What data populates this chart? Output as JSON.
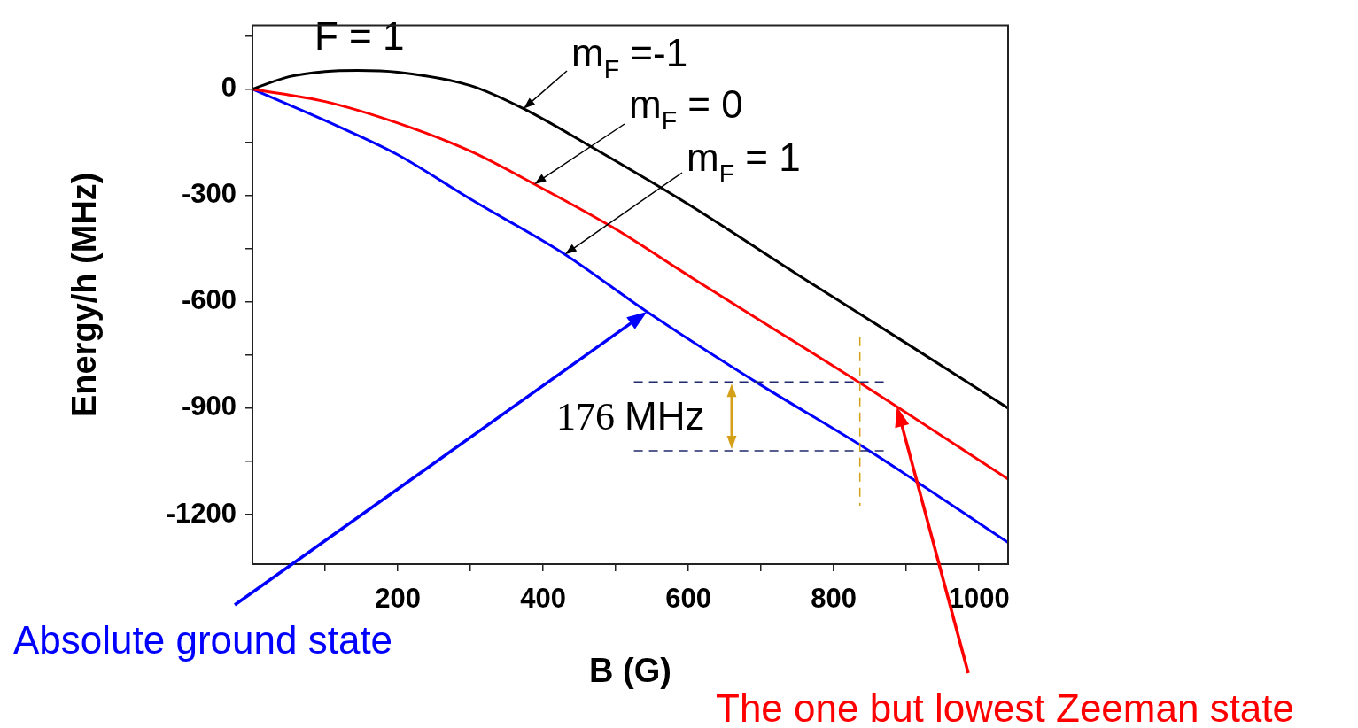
{
  "chart_data": {
    "type": "line",
    "xlabel": "B (G)",
    "ylabel": "Energy/h (MHz)",
    "x": [
      0,
      50,
      100,
      145,
      200,
      300,
      373,
      470,
      604,
      750,
      900,
      1040
    ],
    "series": [
      {
        "color": "#000000",
        "values": [
          0,
          35,
          50,
          53,
          48,
          10,
          -55,
          -167,
          -330,
          -523,
          -717,
          -900
        ]
      },
      {
        "color": "#ff0000",
        "x": [
          0,
          100,
          199,
          300,
          388,
          500,
          604,
          700,
          834,
          1040
        ],
        "values": [
          0,
          -35,
          -95,
          -175,
          -268,
          -395,
          -531,
          -654,
          -826,
          -1100
        ]
      },
      {
        "color": "#0000ff",
        "x": [
          0,
          117,
          200,
          300,
          430,
          543,
          700,
          845,
          1040
        ],
        "values": [
          0,
          -104,
          -185,
          -310,
          -466,
          -628,
          -835,
          -1015,
          -1279
        ]
      }
    ],
    "xlim": [
      0,
      1040
    ],
    "ylim": [
      -1340,
      180
    ],
    "xticks": [
      {
        "value": 100,
        "label": null
      },
      200,
      {
        "value": 300,
        "label": null
      },
      400,
      {
        "value": 500,
        "label": null
      },
      600,
      {
        "value": 700,
        "label": null
      },
      800,
      {
        "value": 900,
        "label": null
      },
      1000
    ],
    "yticks": [
      -1200,
      {
        "value": -1050,
        "label": null
      },
      -900,
      {
        "value": -750,
        "label": null
      },
      -600,
      {
        "value": -450,
        "label": null
      },
      -300,
      {
        "value": -150,
        "label": null
      },
      0,
      {
        "value": 150,
        "label": null
      }
    ],
    "ref_lines": [
      {
        "axis": "y",
        "value": -826,
        "color": "#1f2a6e",
        "line_style": "dashed"
      },
      {
        "axis": "y",
        "value": -1020,
        "color": "#1f2a6e",
        "line_style": "dashed"
      },
      {
        "axis": "x",
        "value": 836,
        "color": "#d4a017",
        "line_style": "dashed"
      }
    ],
    "annotations": [
      "F = 1",
      {
        "text": "m$_{F}$ =-1",
        "x": 373,
        "y": -55
      },
      {
        "text": "m$_{F}$ = 0",
        "x": 388,
        "y": -268
      },
      "m$_{F}$ = 1",
      "176 MHz",
      "Absolute ground state",
      "The one but lowest Zeeman state"
    ],
    "grid": false,
    "marker": "none",
    "line_style": "solid"
  }
}
